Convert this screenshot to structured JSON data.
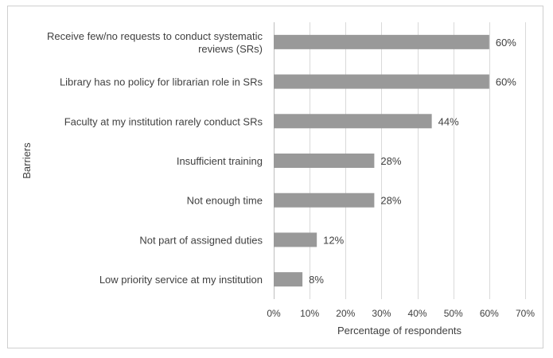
{
  "chart_data": {
    "type": "bar",
    "orientation": "horizontal",
    "categories": [
      [
        "Receive few/no requests to conduct systematic",
        "reviews (SRs)"
      ],
      [
        "Library has no policy for librarian role in SRs"
      ],
      [
        "Faculty at my institution rarely conduct SRs"
      ],
      [
        "Insufficient training"
      ],
      [
        "Not enough time"
      ],
      [
        "Not part of assigned duties"
      ],
      [
        "Low priority service at my institution"
      ]
    ],
    "values": [
      60,
      60,
      44,
      28,
      28,
      12,
      8
    ],
    "value_labels": [
      "60%",
      "60%",
      "44%",
      "28%",
      "28%",
      "12%",
      "8%"
    ],
    "xlabel": "Percentage of respondents",
    "ylabel": "Barriers",
    "xlim": [
      0,
      70
    ],
    "x_ticks": [
      0,
      10,
      20,
      30,
      40,
      50,
      60,
      70
    ],
    "x_tick_labels": [
      "0%",
      "10%",
      "20%",
      "30%",
      "40%",
      "50%",
      "60%",
      "70%"
    ],
    "grid": "vertical",
    "legend": "none",
    "bar_color": "#999999",
    "gridline_color": "#d9d9d9",
    "text_color": "#404040"
  }
}
